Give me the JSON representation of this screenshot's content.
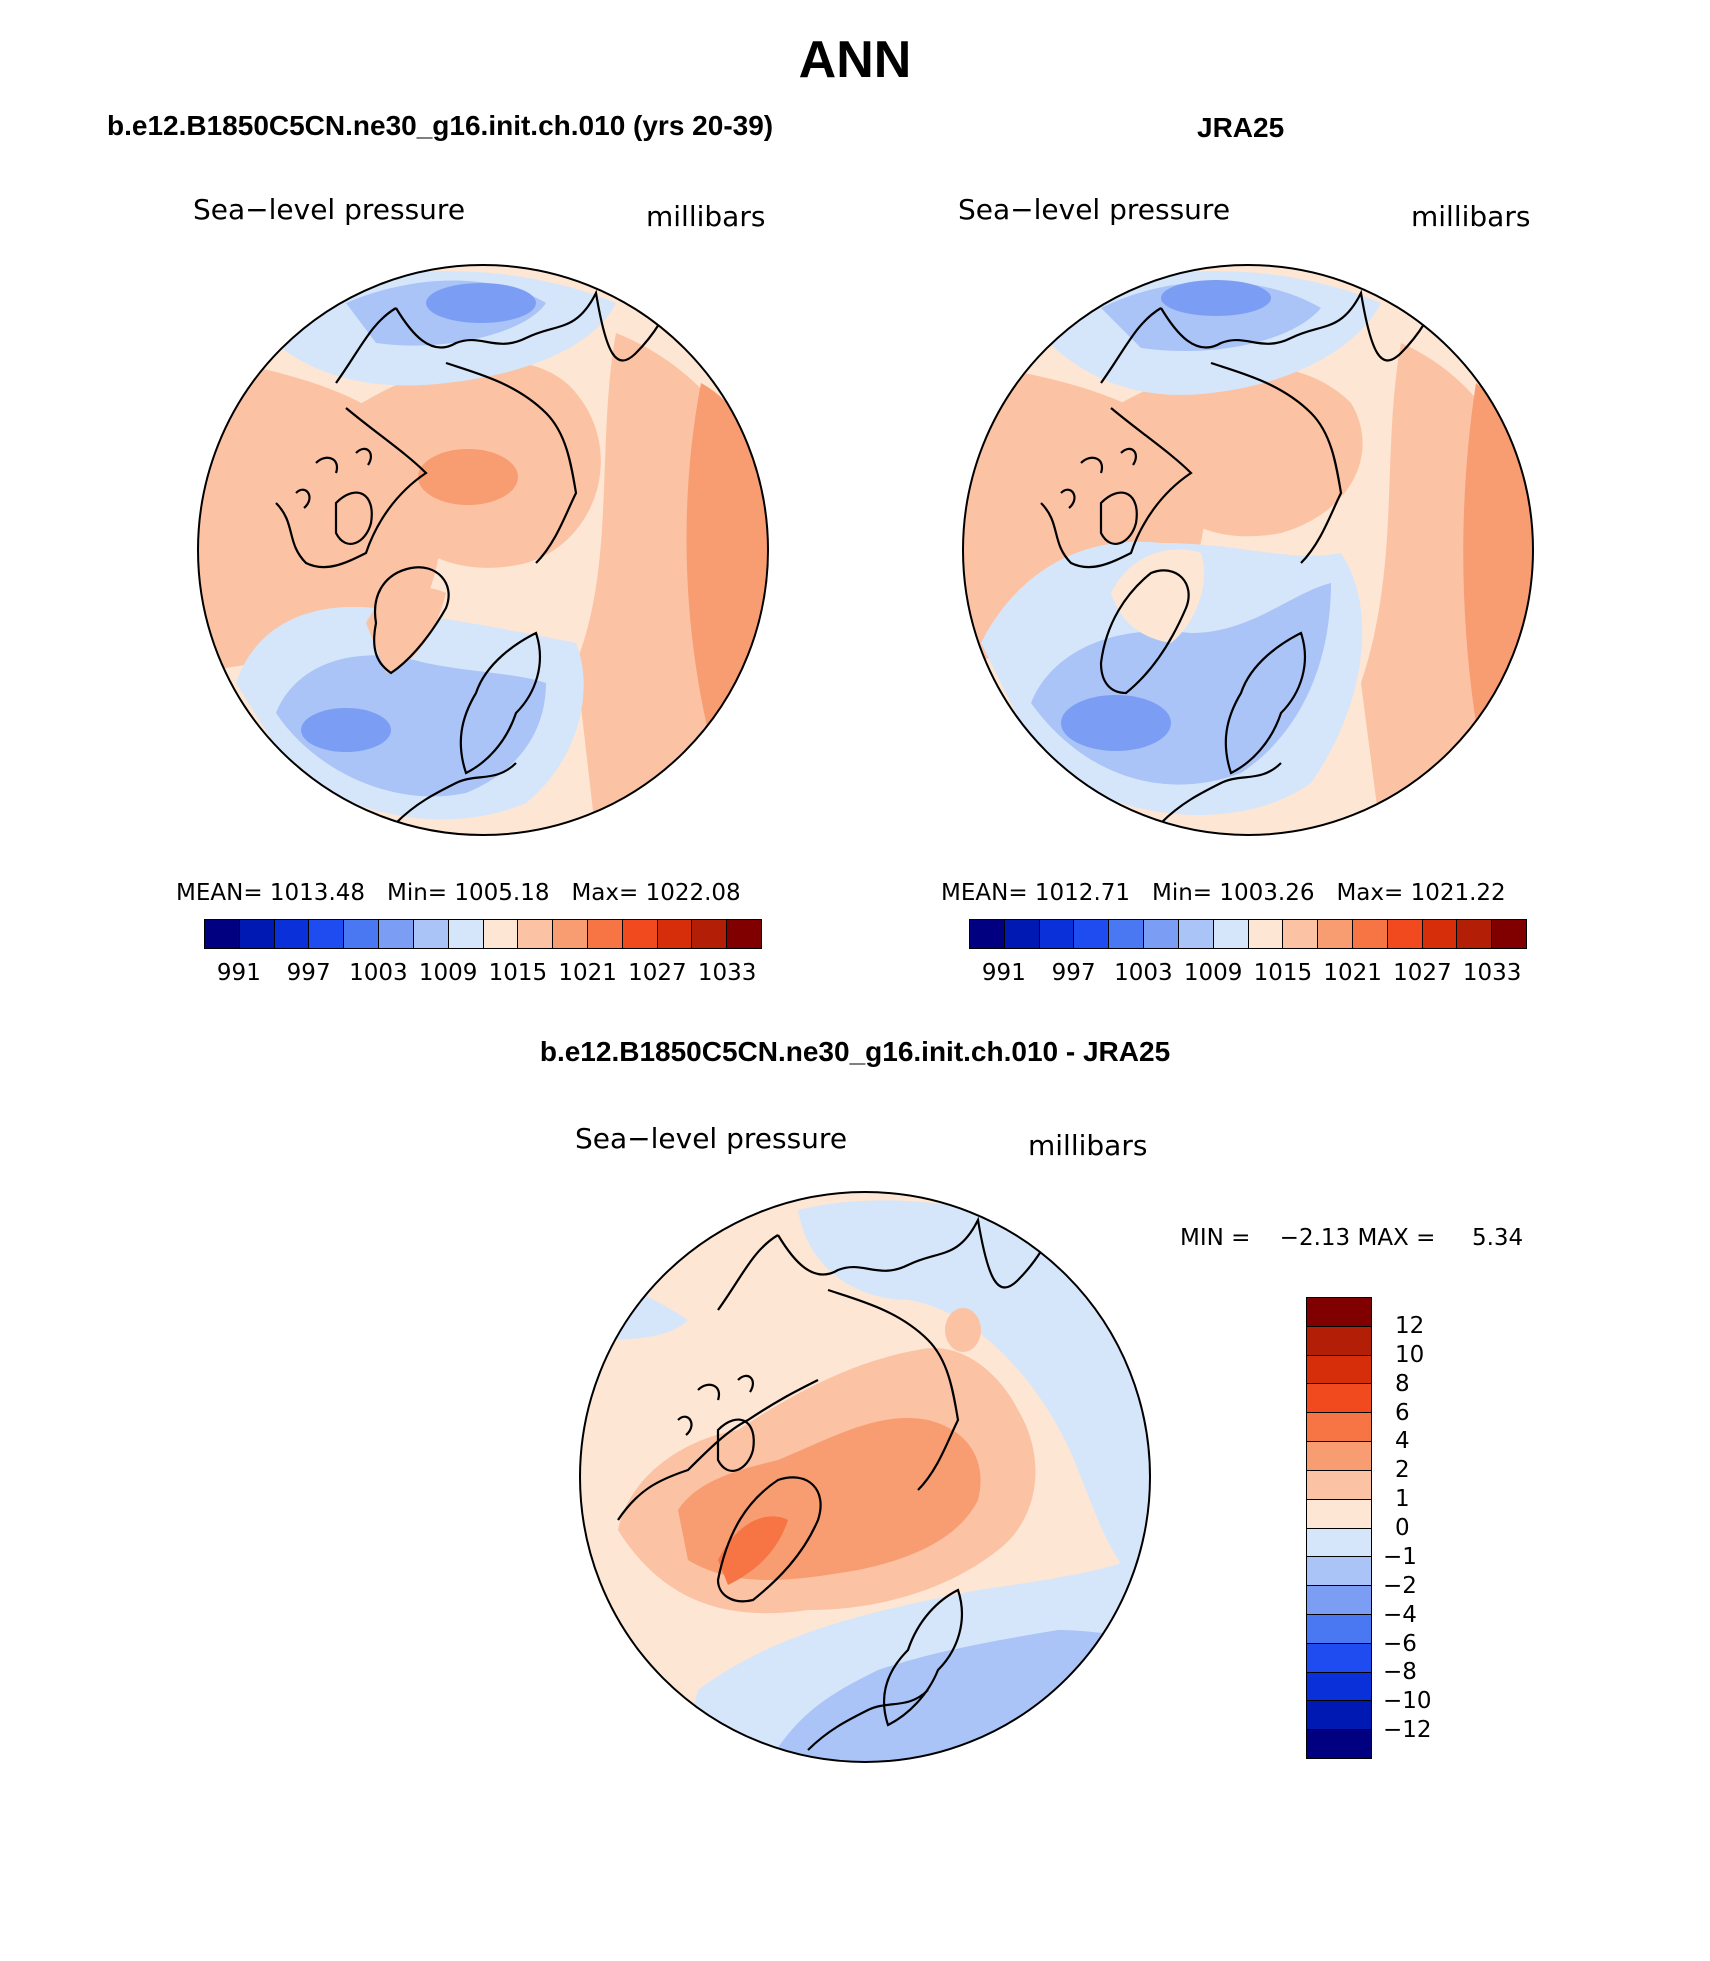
{
  "title": "ANN",
  "variable": "Sea−level pressure",
  "units": "millibars",
  "panels": [
    {
      "id": "model",
      "title": "b.e12.B1850C5CN.ne30_g16.init.ch.010 (yrs 20-39)",
      "stats": {
        "mean_label": "MEAN=",
        "mean": "1013.48",
        "min_label": "Min=",
        "min": "1005.18",
        "max_label": "Max=",
        "max": "1022.08"
      }
    },
    {
      "id": "obs",
      "title": "JRA25",
      "stats": {
        "mean_label": "MEAN=",
        "mean": "1012.71",
        "min_label": "Min=",
        "min": "1003.26",
        "max_label": "Max=",
        "max": "1021.22"
      }
    }
  ],
  "abs_colorbar": {
    "colors": [
      "#000080",
      "#0019b3",
      "#0a30d9",
      "#1e4cf0",
      "#4a77f2",
      "#7b9ef4",
      "#aac4f7",
      "#d6e6fa",
      "#fde6d3",
      "#fbc2a3",
      "#f89c72",
      "#f77444",
      "#f04a1e",
      "#d62e0a",
      "#b31e06",
      "#800000"
    ],
    "tick_labels": [
      "991",
      "997",
      "1003",
      "1009",
      "1015",
      "1021",
      "1027",
      "1033"
    ]
  },
  "diff_panel": {
    "title": "b.e12.B1850C5CN.ne30_g16.init.ch.010 - JRA25",
    "stats": {
      "min_label": "MIN =",
      "min": "−2.13",
      "max_label": "MAX =",
      "max": "5.34"
    }
  },
  "diff_colorbar": {
    "colors_top_to_bottom": [
      "#800000",
      "#b31e06",
      "#d62e0a",
      "#f04a1e",
      "#f77444",
      "#f89c72",
      "#fbc2a3",
      "#fde6d3",
      "#d6e6fa",
      "#aac4f7",
      "#7b9ef4",
      "#4a77f2",
      "#1e4cf0",
      "#0a30d9",
      "#0019b3",
      "#000080"
    ],
    "tick_labels_top_to_bottom": [
      "12",
      "10",
      "8",
      "6",
      "4",
      "2",
      "1",
      "0",
      "−1",
      "−2",
      "−4",
      "−6",
      "−8",
      "−10",
      "−12"
    ]
  }
}
